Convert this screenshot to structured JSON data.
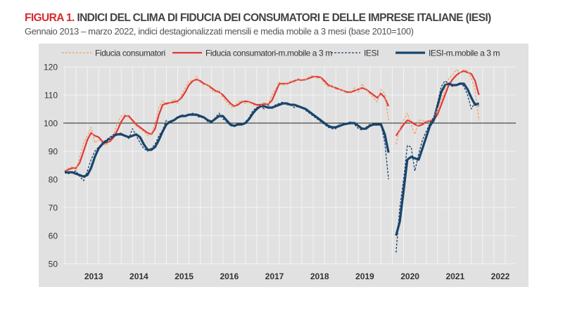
{
  "header": {
    "title_lead": "FIGURA 1.",
    "title_rest": " INDICI DEL CLIMA DI FIDUCIA DEI CONSUMATORI E DELLE IMPRESE ITALIANE (IESI)",
    "subtitle": "Gennaio 2013 – marzo 2022, indici destagionalizzati mensili e media mobile a 3 mesi (base 2010=100)"
  },
  "chart_data": {
    "type": "line",
    "title": "INDICI DEL CLIMA DI FIDUCIA DEI CONSUMATORI E DELLE IMPRESE ITALIANE (IESI)",
    "x_start": "2013-01",
    "x_end": "2022-03",
    "x_unit": "month index from Jan 2013",
    "xtick_labels": [
      "2013",
      "2014",
      "2015",
      "2016",
      "2017",
      "2018",
      "2019",
      "2020",
      "2021",
      "2022"
    ],
    "ylim": [
      50,
      120
    ],
    "yticks": [
      50,
      60,
      70,
      80,
      90,
      100,
      110,
      120
    ],
    "reference_line": 100,
    "grid": true,
    "legend_position": "top",
    "colors": {
      "cons_raw": "#f0a262",
      "cons_ma": "#e0383a",
      "iesi_raw": "#1f3f6a",
      "iesi_ma": "#17456b",
      "background": "#e1e1e1"
    },
    "series": [
      {
        "name": "Fiducia consumatori",
        "style": "dashed",
        "color_key": "cons_raw",
        "values": [
          83,
          84,
          84.5,
          83,
          88,
          93,
          95.5,
          98.5,
          93,
          94,
          93,
          92,
          94.5,
          96,
          100,
          102.5,
          103,
          102,
          100.5,
          99,
          98,
          97,
          95.5,
          96,
          100,
          105.5,
          108,
          106.5,
          107,
          108.5,
          107,
          110,
          112.5,
          115,
          115,
          116.5,
          114.5,
          113.5,
          114,
          111.5,
          111,
          111.5,
          109,
          107.5,
          106,
          105.5,
          107.5,
          108,
          107,
          107.5,
          106.5,
          106,
          106,
          107.5,
          106.5,
          110,
          112,
          114.5,
          113.5,
          114,
          115,
          114.5,
          116,
          115,
          115.5,
          116.5,
          117,
          116,
          116,
          114,
          113,
          113.5,
          112,
          112,
          111.5,
          110.5,
          111,
          112.5,
          111,
          114,
          112,
          110.5,
          109,
          107.5,
          112,
          110.5,
          101,
          null,
          92.5,
          98,
          101,
          103.5,
          99.5,
          96,
          101,
          101,
          100.5,
          101,
          102,
          105,
          108,
          112,
          116,
          117,
          119,
          118,
          119,
          118.5,
          116,
          112,
          101
        ]
      },
      {
        "name": "Fiducia consumatori-m.mobile a 3 m",
        "style": "solid",
        "color_key": "cons_ma",
        "values": [
          83,
          83.5,
          84,
          84,
          86,
          90,
          94,
          96.5,
          95.5,
          95,
          93.5,
          93,
          93.5,
          95,
          97.5,
          100.5,
          102.5,
          102.5,
          101,
          99.5,
          98.5,
          97.5,
          96.5,
          96,
          98,
          103,
          106.5,
          107,
          107.2,
          107.5,
          107.8,
          109,
          111,
          113.5,
          115,
          115.5,
          115,
          114,
          113.5,
          112.5,
          111.5,
          111,
          110,
          108.5,
          107,
          106,
          106.5,
          107.5,
          107.8,
          107.5,
          107,
          106.5,
          106.5,
          106.8,
          106.7,
          108,
          111,
          114,
          114,
          114,
          114.5,
          115,
          115.5,
          115.2,
          115.5,
          116,
          116.5,
          116.5,
          116.2,
          115,
          113.5,
          113,
          112.5,
          112,
          111.5,
          111,
          111,
          111.5,
          112,
          112.5,
          112,
          111,
          110,
          109,
          110.5,
          109,
          106,
          null,
          95.5,
          97.5,
          99.5,
          101,
          100.5,
          99.5,
          99,
          99.5,
          100.5,
          100.8,
          101,
          103,
          106.5,
          110,
          113.5,
          115.5,
          117,
          118,
          118.5,
          118,
          117.5,
          115,
          110
        ]
      },
      {
        "name": "IESI",
        "style": "dashed",
        "color_key": "iesi_raw",
        "values": [
          83,
          82,
          82.5,
          83,
          81,
          79.5,
          83,
          87,
          90,
          91.5,
          93,
          94,
          95,
          96,
          96,
          96.5,
          95.5,
          94.5,
          98,
          95.5,
          93,
          91,
          90,
          91,
          92.5,
          95.5,
          97.5,
          101,
          100,
          101,
          102,
          103,
          102.5,
          103,
          103.5,
          102.5,
          102,
          102,
          100.5,
          100,
          102,
          103.5,
          101.5,
          100.5,
          99,
          99,
          100,
          99.5,
          100.5,
          102,
          104.5,
          105.5,
          106,
          105,
          106.5,
          105,
          106.5,
          107,
          107.5,
          106.5,
          106.5,
          105.5,
          106,
          105.5,
          104.5,
          103.5,
          102.5,
          101.5,
          100.5,
          99.5,
          98.5,
          98,
          98,
          100,
          99.5,
          100,
          100.5,
          99.5,
          98,
          97.5,
          98.5,
          99.5,
          99.5,
          99.5,
          99.5,
          93,
          80,
          null,
          54,
          70,
          80,
          92,
          91.5,
          83,
          89,
          94,
          97,
          100,
          102,
          107,
          113,
          115,
          114,
          113,
          113.5,
          114.5,
          113,
          110,
          105,
          107.5,
          106
        ]
      },
      {
        "name": "IESI-m.mobile a 3 m",
        "style": "thick",
        "color_key": "iesi_ma",
        "values": [
          82.5,
          82.5,
          82.5,
          82,
          81.5,
          81,
          81.5,
          84,
          88,
          91,
          92.5,
          93.5,
          94.5,
          95.5,
          96,
          96,
          95.5,
          95,
          95.5,
          96,
          95,
          92.5,
          90.5,
          90.5,
          91.5,
          94,
          97,
          99.5,
          100.5,
          101,
          102,
          102.5,
          102.5,
          103,
          103,
          103,
          102.5,
          102,
          101,
          100.5,
          101.5,
          102.5,
          102.5,
          101,
          99.5,
          99,
          99.5,
          99.5,
          100,
          101.5,
          103.5,
          105,
          106,
          106,
          105.5,
          105.5,
          106,
          106.5,
          107,
          107,
          106.5,
          106.5,
          106,
          105.5,
          105,
          104,
          103,
          102,
          101,
          100,
          99,
          98.5,
          98.5,
          99,
          99.5,
          99.8,
          100,
          100,
          99,
          98,
          98,
          99,
          99.5,
          99.5,
          99.5,
          96,
          89.5,
          null,
          60,
          65,
          76,
          87,
          88,
          87.5,
          87,
          91,
          95,
          99,
          101,
          106,
          111,
          113.5,
          114,
          113.5,
          113.5,
          114,
          114,
          112,
          109,
          106.5,
          107
        ]
      }
    ]
  }
}
